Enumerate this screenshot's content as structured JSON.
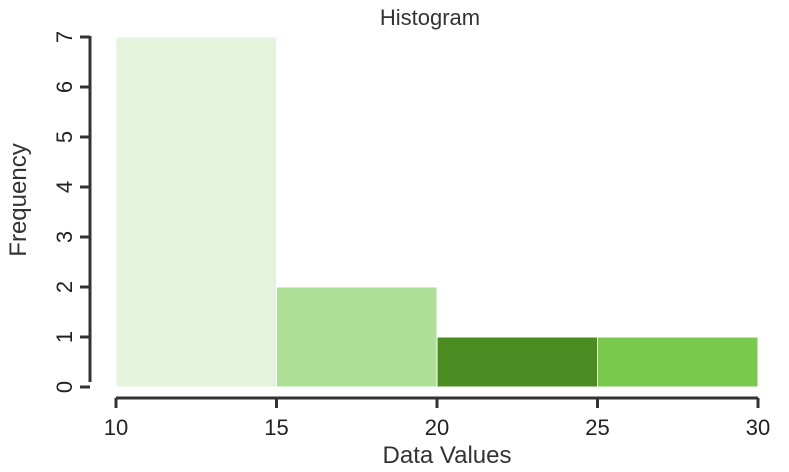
{
  "chart_data": {
    "type": "bar",
    "title": "Histogram",
    "xlabel": "Data Values",
    "ylabel": "Frequency",
    "bins": [
      {
        "start": 10,
        "end": 15,
        "count": 7,
        "color": "#e3f3dc"
      },
      {
        "start": 15,
        "end": 20,
        "count": 2,
        "color": "#addf97"
      },
      {
        "start": 20,
        "end": 25,
        "count": 1,
        "color": "#4b8c22"
      },
      {
        "start": 25,
        "end": 30,
        "count": 1,
        "color": "#79c94d"
      }
    ],
    "xlim": [
      10,
      30
    ],
    "ylim": [
      0,
      7
    ],
    "x_ticks": [
      10,
      15,
      20,
      25,
      30
    ],
    "y_ticks": [
      0,
      1,
      2,
      3,
      4,
      5,
      6,
      7
    ],
    "grid": false,
    "legend": "none"
  }
}
